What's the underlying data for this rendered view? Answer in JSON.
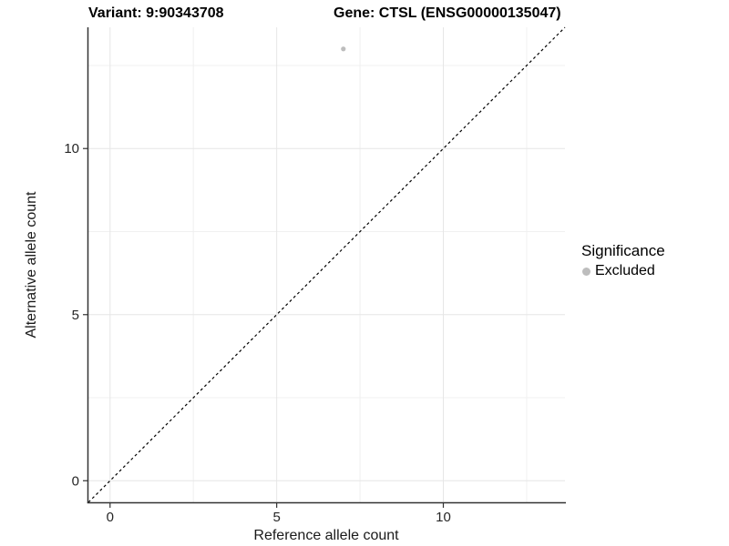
{
  "chart_data": {
    "type": "scatter",
    "title_left": "Variant: 9:90343708",
    "title_right": "Gene: CTSL (ENSG00000135047)",
    "xlabel": "Reference allele count",
    "ylabel": "Alternative allele count",
    "xlim": [
      -0.65,
      13.65
    ],
    "ylim": [
      -0.65,
      13.65
    ],
    "x_ticks": [
      0,
      5,
      10
    ],
    "y_ticks": [
      0,
      5,
      10
    ],
    "x_minor_gridlines": [
      2.5,
      7.5,
      12.5
    ],
    "y_minor_gridlines": [
      2.5,
      7.5,
      12.5
    ],
    "grid": "major+minor",
    "series": [
      {
        "name": "Excluded",
        "color": "#bdbdbd",
        "points": [
          {
            "x": 7,
            "y": 13
          }
        ]
      }
    ],
    "reference_line": {
      "type": "identity",
      "style": "dashed",
      "color": "#000000"
    },
    "legend": {
      "title": "Significance",
      "position": "right",
      "items": [
        {
          "label": "Excluded",
          "color": "#bdbdbd"
        }
      ]
    },
    "colors": {
      "background": "#ffffff",
      "axis_line": "#333333",
      "tick": "#333333",
      "tick_label": "#262626",
      "grid_major": "#e6e6e6",
      "grid_minor": "#f0f0f0"
    }
  }
}
